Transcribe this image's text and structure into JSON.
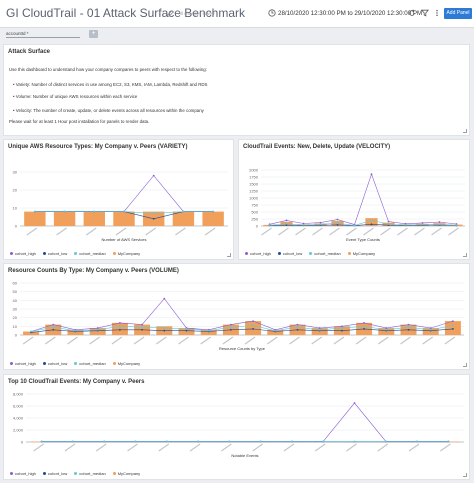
{
  "header": {
    "title": "GI CloudTrail - 01 Attack Surface Benchmark",
    "saved_status": "All changes saved",
    "time_range": "28/10/2020 12:30:00 PM to 29/10/2020 12:30:00 PM",
    "add_panel_label": "Add Panel",
    "icons": [
      "edit-icon",
      "clock-icon",
      "refresh-icon",
      "filter-icon",
      "more-icon"
    ]
  },
  "filter": {
    "value": "accountId *",
    "add_label": "+"
  },
  "colors": {
    "mycompany": "#f0a05a",
    "cohort_high": "#8b5fd3",
    "cohort_low": "#1c4a9c",
    "cohort_median": "#63c7d8",
    "accent": "#2e7bd6"
  },
  "attack": {
    "title": "Attack Surface",
    "intro": "Use this dashboard to understand how your company compares to peers with respect to the following:",
    "bullets": [
      "Variety: Number of distinct services in use among EC2, S3, KMS, IAM, Lambda, Redshift and RDS",
      "Volume: Number of unique AWS resources within each service",
      "Velocity: The number of create, update, or delete events across all resources within the company"
    ],
    "note": "Please wait for at least 1 Hour post installation for panels to render data."
  },
  "legend": [
    "cohort_high",
    "cohort_low",
    "cohort_median",
    "MyCompany"
  ],
  "panels": {
    "variety": {
      "title": "Unique AWS Resource Types: My Company v. Peers (VARIETY)",
      "xlabel": "Number of AWS Services",
      "chart_data": {
        "type": "bar",
        "ylim": [
          0,
          30
        ],
        "yticks": [
          0,
          10,
          20,
          30
        ],
        "bar_count": 7,
        "series": [
          {
            "name": "MyCompany",
            "type": "bar",
            "values": [
              8,
              8,
              8,
              8,
              8,
              8,
              8
            ]
          },
          {
            "name": "cohort_high",
            "type": "line",
            "values": [
              8,
              8,
              8,
              8,
              28,
              8,
              8
            ]
          },
          {
            "name": "cohort_low",
            "type": "line",
            "values": [
              8,
              8,
              8,
              8,
              4,
              8,
              8
            ]
          },
          {
            "name": "cohort_median",
            "type": "line",
            "values": [
              8,
              8,
              8,
              8,
              7,
              8,
              8
            ]
          }
        ]
      }
    },
    "velocity": {
      "title": "CloudTrail Events: New, Delete, Update (VELOCITY)",
      "xlabel": "Event Type Counts",
      "chart_data": {
        "type": "bar",
        "ylim": [
          0,
          2000
        ],
        "yticks": [
          0,
          250,
          500,
          750,
          1000,
          1250,
          1500,
          1750,
          2000
        ],
        "bar_count": 12,
        "series": [
          {
            "name": "MyCompany",
            "type": "bar",
            "values": [
              40,
              150,
              60,
              90,
              180,
              30,
              280,
              120,
              60,
              80,
              100,
              50
            ]
          },
          {
            "name": "cohort_high",
            "type": "line",
            "values": [
              60,
              200,
              90,
              120,
              230,
              50,
              1850,
              160,
              80,
              110,
              140,
              70
            ]
          },
          {
            "name": "cohort_low",
            "type": "line",
            "values": [
              20,
              30,
              25,
              30,
              40,
              15,
              60,
              30,
              25,
              30,
              35,
              20
            ]
          },
          {
            "name": "cohort_median",
            "type": "line",
            "values": [
              30,
              80,
              40,
              60,
              100,
              20,
              200,
              70,
              40,
              50,
              60,
              30
            ]
          }
        ]
      }
    },
    "volume": {
      "title": "Resource Counts By Type: My Company v. Peers (VOLUME)",
      "xlabel": "Resource Counts by Type",
      "chart_data": {
        "type": "bar",
        "ylim": [
          0,
          60
        ],
        "yticks": [
          0,
          10,
          20,
          30,
          40,
          50,
          60
        ],
        "bar_count": 20,
        "series": [
          {
            "name": "MyCompany",
            "type": "bar",
            "values": [
              4,
              12,
              6,
              8,
              14,
              12,
              10,
              8,
              6,
              12,
              16,
              6,
              12,
              8,
              10,
              14,
              8,
              12,
              8,
              16
            ]
          },
          {
            "name": "cohort_high",
            "type": "line",
            "values": [
              4,
              12,
              6,
              8,
              14,
              12,
              42,
              8,
              6,
              12,
              16,
              6,
              12,
              8,
              10,
              14,
              8,
              12,
              8,
              16
            ]
          },
          {
            "name": "cohort_low",
            "type": "line",
            "values": [
              3,
              6,
              4,
              5,
              6,
              6,
              5,
              5,
              4,
              6,
              7,
              4,
              6,
              5,
              5,
              7,
              5,
              6,
              5,
              7
            ]
          },
          {
            "name": "cohort_median",
            "type": "line",
            "values": [
              4,
              9,
              5,
              6,
              10,
              9,
              8,
              7,
              5,
              9,
              11,
              5,
              9,
              6,
              8,
              10,
              6,
              9,
              6,
              11
            ]
          }
        ]
      }
    },
    "top10": {
      "title": "Top 10 CloudTrail Events: My Company v. Peers",
      "xlabel": "Notable Events",
      "chart_data": {
        "type": "line",
        "ylim": [
          0,
          8000
        ],
        "yticks": [
          0,
          2000,
          4000,
          6000,
          8000
        ],
        "yticklabels": [
          "0",
          "2,000",
          "4,000",
          "6,000",
          "8,000"
        ],
        "bar_count": 14,
        "series": [
          {
            "name": "MyCompany",
            "type": "bar",
            "values": [
              60,
              60,
              60,
              60,
              60,
              60,
              60,
              60,
              60,
              60,
              60,
              60,
              60,
              60
            ]
          },
          {
            "name": "cohort_high",
            "type": "line",
            "values": [
              100,
              100,
              100,
              100,
              100,
              100,
              100,
              100,
              100,
              100,
              6500,
              100,
              100,
              100
            ]
          },
          {
            "name": "cohort_low",
            "type": "line",
            "values": [
              40,
              40,
              40,
              40,
              40,
              40,
              40,
              40,
              40,
              40,
              40,
              40,
              40,
              40
            ]
          },
          {
            "name": "cohort_median",
            "type": "line",
            "values": [
              70,
              70,
              70,
              70,
              70,
              70,
              70,
              70,
              70,
              70,
              70,
              70,
              70,
              70
            ]
          }
        ]
      }
    }
  }
}
